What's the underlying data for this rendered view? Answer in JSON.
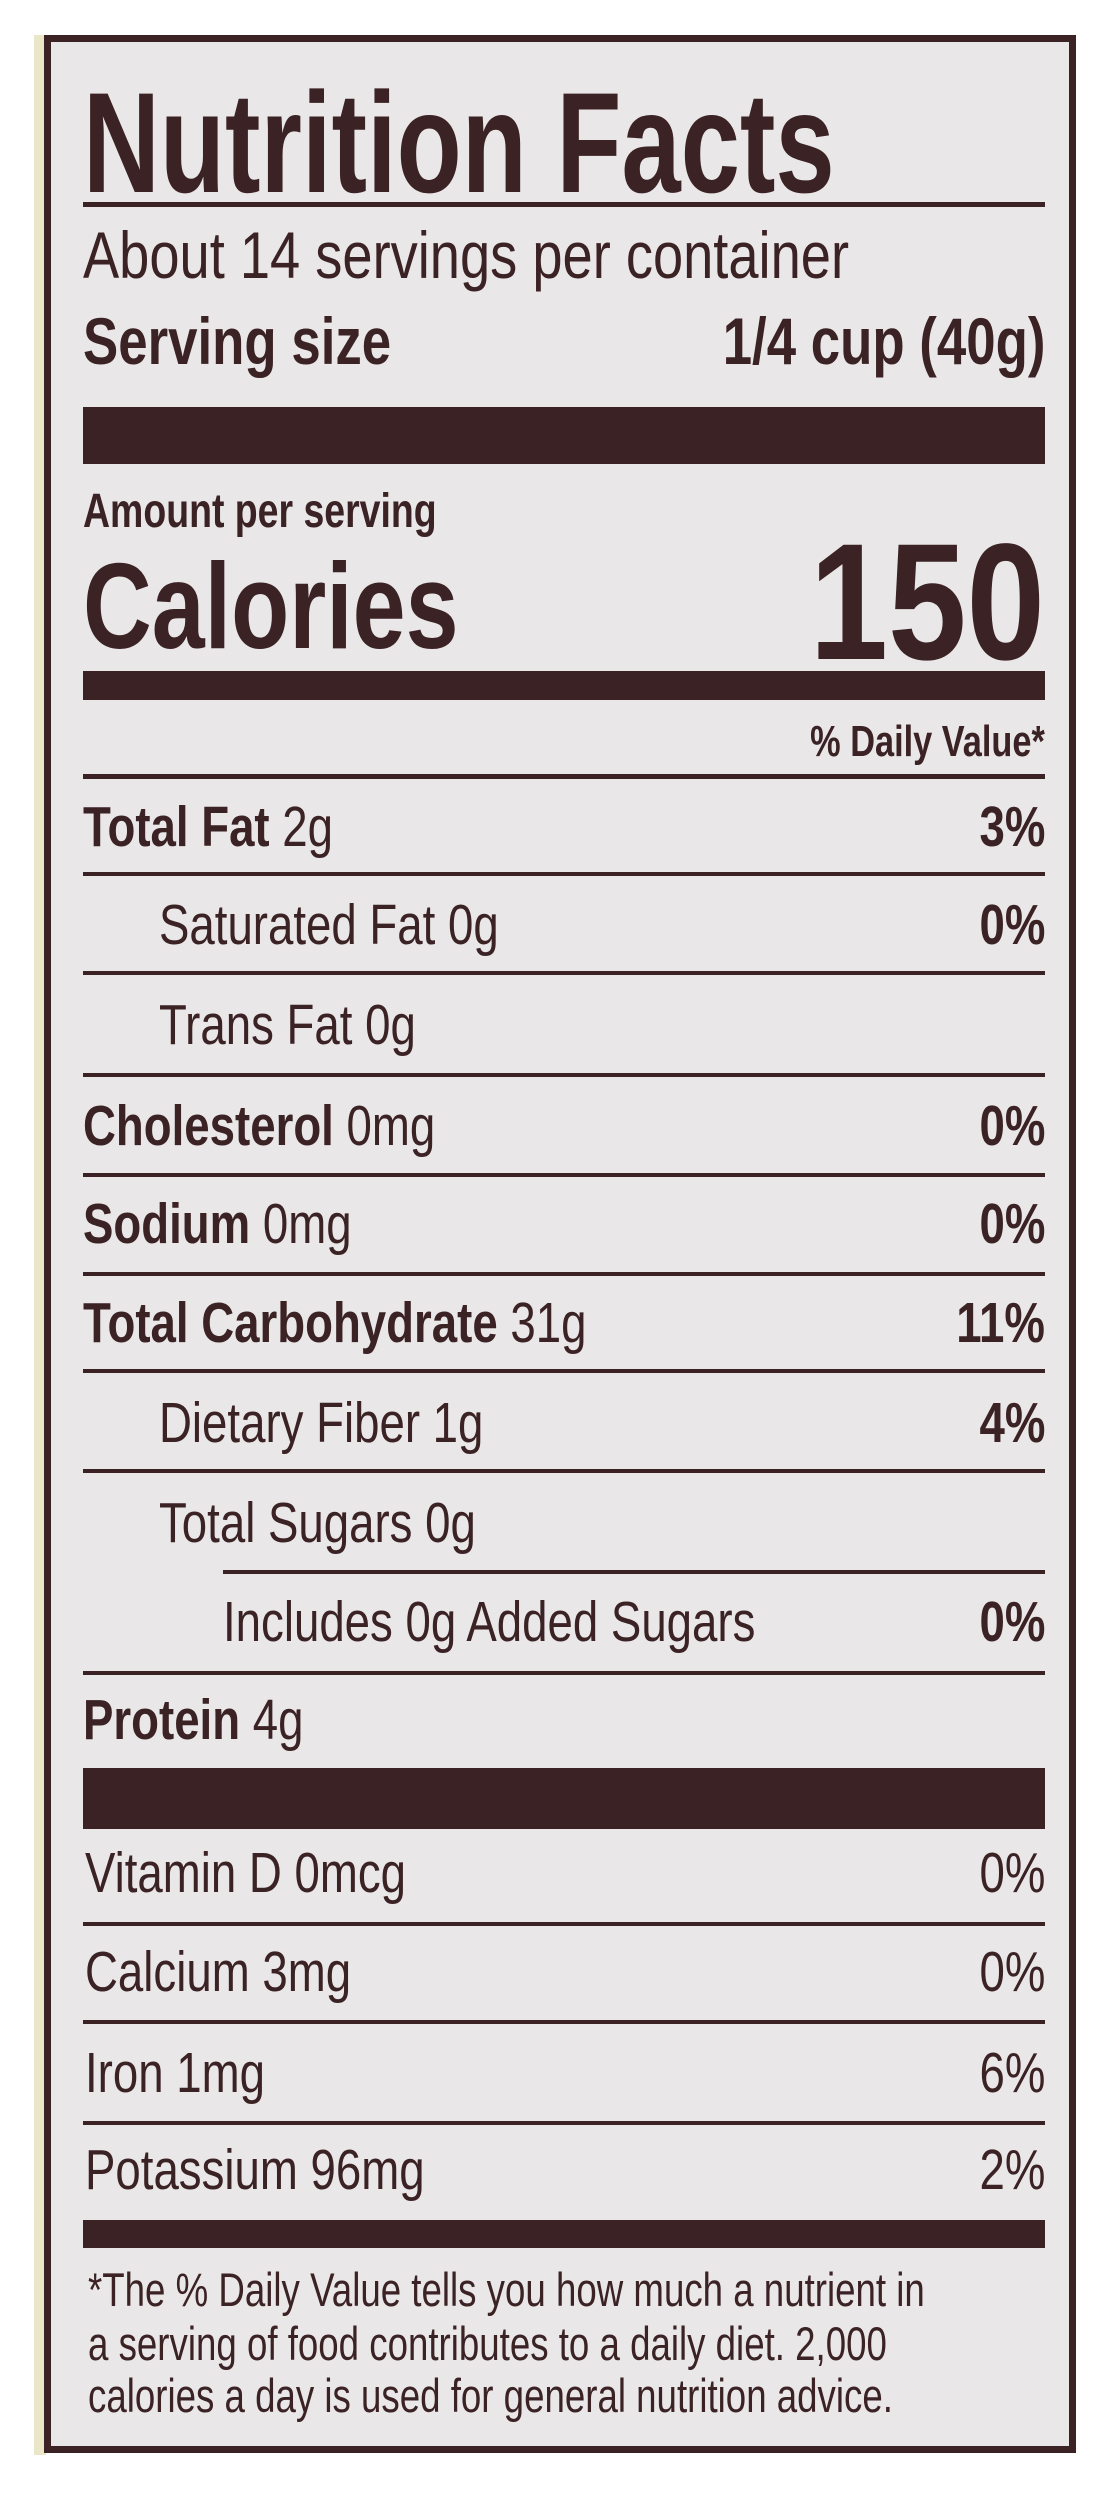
{
  "title": "Nutrition Facts",
  "servings_per_container": "About 14 servings per container",
  "serving_size_label": "Serving size",
  "serving_size_value": "1/4 cup (40g)",
  "amount_per_serving": "Amount per serving",
  "calories_label": "Calories",
  "calories_value": "150",
  "daily_value_header": "% Daily Value*",
  "nutrients": [
    {
      "name": "Total Fat",
      "amount": "2g",
      "dv": "3%",
      "bold": true,
      "indent": 0
    },
    {
      "name": "Saturated Fat",
      "amount": "0g",
      "dv": "0%",
      "bold": false,
      "indent": 1
    },
    {
      "name": "Trans Fat",
      "amount": "0g",
      "dv": "",
      "bold": false,
      "indent": 1
    },
    {
      "name": "Cholesterol",
      "amount": "0mg",
      "dv": "0%",
      "bold": true,
      "indent": 0
    },
    {
      "name": "Sodium",
      "amount": "0mg",
      "dv": "0%",
      "bold": true,
      "indent": 0
    },
    {
      "name": "Total Carbohydrate",
      "amount": "31g",
      "dv": "11%",
      "bold": true,
      "indent": 0
    },
    {
      "name": "Dietary Fiber",
      "amount": "1g",
      "dv": "4%",
      "bold": false,
      "indent": 1
    },
    {
      "name": "Total Sugars",
      "amount": "0g",
      "dv": "",
      "bold": false,
      "indent": 1
    },
    {
      "name": "Includes 0g Added Sugars",
      "amount": "",
      "dv": "0%",
      "bold": false,
      "indent": 2
    },
    {
      "name": "Protein",
      "amount": "4g",
      "dv": "",
      "bold": true,
      "indent": 0
    }
  ],
  "vitamins": [
    {
      "name": "Vitamin D 0mcg",
      "dv": "0%"
    },
    {
      "name": "Calcium 3mg",
      "dv": "0%"
    },
    {
      "name": "Iron 1mg",
      "dv": "6%"
    },
    {
      "name": "Potassium 96mg",
      "dv": "2%"
    }
  ],
  "footnote": [
    "*The % Daily Value tells you how much a nutrient in",
    "a serving of food contributes to a daily diet. 2,000",
    "calories a day is used for general nutrition advice."
  ],
  "colors": {
    "ink": "#3b2224",
    "label_bg": "#e9e7e8",
    "edge": "#ece6c8"
  }
}
